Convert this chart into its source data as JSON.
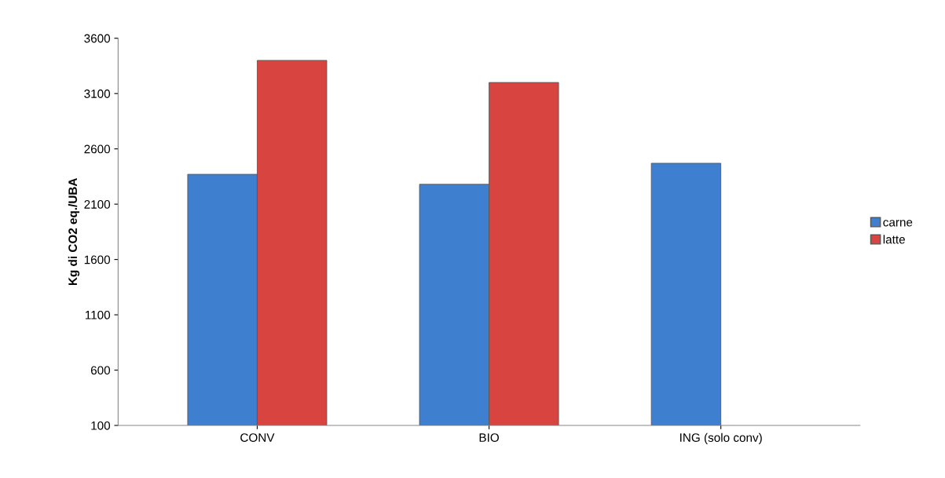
{
  "chart_data": {
    "type": "bar",
    "ylabel": "Kg di CO2 eq./UBA",
    "categories": [
      "CONV",
      "BIO",
      "ING (solo conv)"
    ],
    "series": [
      {
        "name": "carne",
        "color": "#3f7fd0",
        "values": [
          2370,
          2280,
          2470
        ]
      },
      {
        "name": "latte",
        "color": "#d84440",
        "values": [
          3400,
          3200,
          null
        ]
      }
    ],
    "ylim": [
      100,
      3600
    ],
    "yticks": [
      100,
      600,
      1100,
      1600,
      2100,
      2600,
      3100,
      3600
    ],
    "grid": false,
    "legend": "right"
  }
}
